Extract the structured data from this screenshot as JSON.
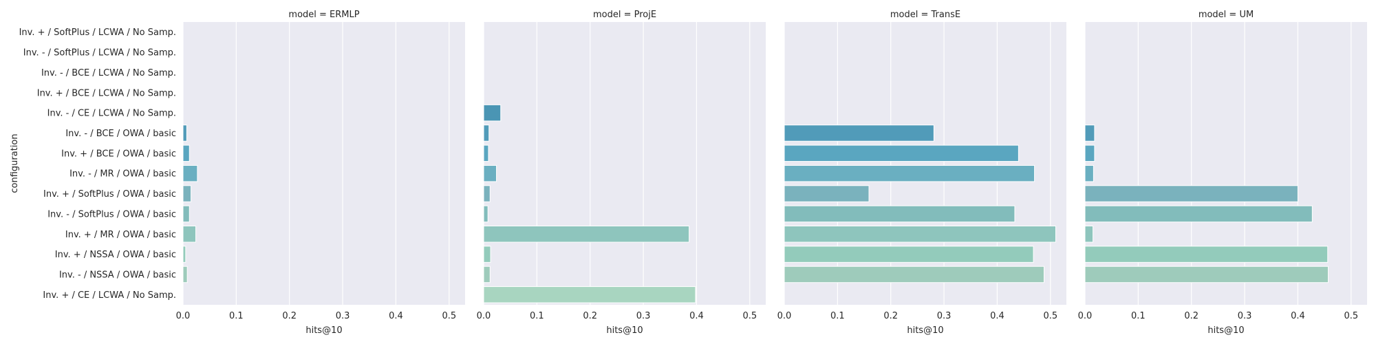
{
  "chart_data": {
    "type": "bar",
    "orientation": "horizontal",
    "facet_by": "model",
    "xlabel": "hits@10",
    "ylabel": "configuration",
    "xlim": [
      0,
      0.53
    ],
    "xticks": [
      0.0,
      0.1,
      0.2,
      0.3,
      0.4,
      0.5
    ],
    "grid": true,
    "categories": [
      "Inv. + / SoftPlus / LCWA / No Samp.",
      "Inv. - / SoftPlus / LCWA / No Samp.",
      "Inv. - / BCE / LCWA / No Samp.",
      "Inv. + / BCE / LCWA / No Samp.",
      "Inv. - / CE / LCWA / No Samp.",
      "Inv. - / BCE / OWA / basic",
      "Inv. + / BCE / OWA / basic",
      "Inv. - / MR / OWA / basic",
      "Inv. + / SoftPlus / OWA / basic",
      "Inv. - / SoftPlus / OWA / basic",
      "Inv. + / MR / OWA / basic",
      "Inv. + / NSSA / OWA / basic",
      "Inv. - / NSSA / OWA / basic",
      "Inv. + / CE / LCWA / No Samp."
    ],
    "bar_colors": [
      "#2c5d78",
      "#336b87",
      "#3a7a96",
      "#4a889f",
      "#4a95b4",
      "#519bb9",
      "#5aa6c0",
      "#6aafc1",
      "#7ab2bd",
      "#82bcbb",
      "#8ec5bd",
      "#93cbbb",
      "#9ecbbb",
      "#a8d5c0"
    ],
    "panels": [
      {
        "title": "model = ERMLP",
        "values": [
          0,
          0,
          0,
          0,
          0,
          0.007,
          0.012,
          0.027,
          0.015,
          0.012,
          0.024,
          0.005,
          0.008,
          0
        ]
      },
      {
        "title": "model = ProjE",
        "values": [
          0,
          0,
          0,
          0,
          0.032,
          0.01,
          0.009,
          0.024,
          0.012,
          0.008,
          0.386,
          0.013,
          0.012,
          0.398
        ]
      },
      {
        "title": "model = TransE",
        "values": [
          0,
          0,
          0,
          0,
          0,
          0.281,
          0.44,
          0.47,
          0.159,
          0.433,
          0.51,
          0.468,
          0.488,
          0
        ]
      },
      {
        "title": "model = UM",
        "values": [
          0,
          0,
          0,
          0,
          0,
          0.018,
          0.018,
          0.016,
          0.4,
          0.427,
          0.015,
          0.456,
          0.457,
          0
        ]
      }
    ]
  }
}
